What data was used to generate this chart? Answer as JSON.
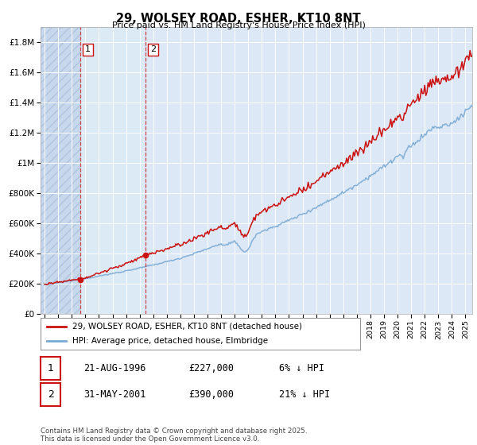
{
  "title": "29, WOLSEY ROAD, ESHER, KT10 8NT",
  "subtitle": "Price paid vs. HM Land Registry's House Price Index (HPI)",
  "ylabel_ticks": [
    "£0",
    "£200K",
    "£400K",
    "£600K",
    "£800K",
    "£1M",
    "£1.2M",
    "£1.4M",
    "£1.6M",
    "£1.8M"
  ],
  "ytick_values": [
    0,
    200000,
    400000,
    600000,
    800000,
    1000000,
    1200000,
    1400000,
    1600000,
    1800000
  ],
  "ylim": [
    0,
    1900000
  ],
  "xlim_start": 1993.7,
  "xlim_end": 2025.5,
  "hpi_color": "#7aaad4",
  "price_color": "#cc1111",
  "sale1_x": 1996.64,
  "sale1_y": 227000,
  "sale2_x": 2001.42,
  "sale2_y": 390000,
  "vline1_x": 1996.64,
  "vline2_x": 2001.42,
  "legend_house": "29, WOLSEY ROAD, ESHER, KT10 8NT (detached house)",
  "legend_hpi": "HPI: Average price, detached house, Elmbridge",
  "table_row1": [
    "1",
    "21-AUG-1996",
    "£227,000",
    "6% ↓ HPI"
  ],
  "table_row2": [
    "2",
    "31-MAY-2001",
    "£390,000",
    "21% ↓ HPI"
  ],
  "footnote": "Contains HM Land Registry data © Crown copyright and database right 2025.\nThis data is licensed under the Open Government Licence v3.0.",
  "background_color": "#ffffff",
  "plot_bg_color": "#dce8f5",
  "hatch_region1_color": "#c5d8ee",
  "hatch_region2_color": "#daeaf8"
}
